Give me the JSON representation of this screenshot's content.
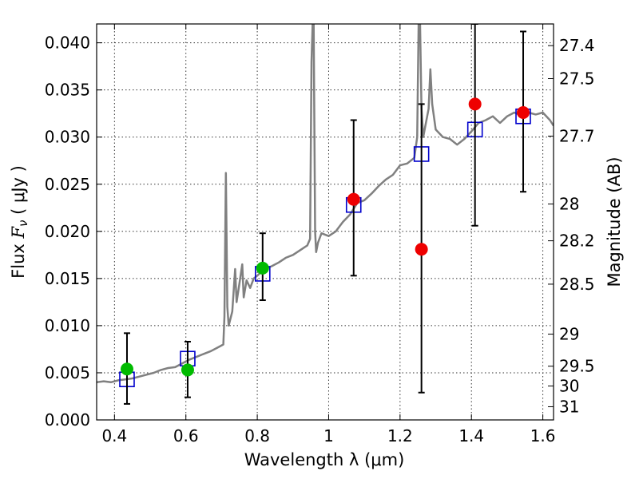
{
  "chart_data": {
    "type": "scatter",
    "title": "",
    "xlabel": "Wavelength  λ (μm)",
    "ylabel_prefix": "Flux  ",
    "ylabel_symbol": "F",
    "ylabel_subscript": "ν",
    "ylabel_unit": "  ( μJy )",
    "y2label": "Magnitude (AB)",
    "xlim": [
      0.35,
      1.63
    ],
    "ylim": [
      0.0,
      0.042
    ],
    "grid": true,
    "xticks": [
      0.4,
      0.6,
      0.8,
      1.0,
      1.2,
      1.4,
      1.6
    ],
    "xtick_labels": [
      "0.4",
      "0.6",
      "0.8",
      "1",
      "1.2",
      "1.4",
      "1.6"
    ],
    "yticks": [
      0.0,
      0.005,
      0.01,
      0.015,
      0.02,
      0.025,
      0.03,
      0.035,
      0.04
    ],
    "ytick_labels": [
      "0.000",
      "0.005",
      "0.010",
      "0.015",
      "0.020",
      "0.025",
      "0.030",
      "0.035",
      "0.040"
    ],
    "y2_ticks": [
      {
        "label": "27.4",
        "flux": 0.0397
      },
      {
        "label": "27.5",
        "flux": 0.0362
      },
      {
        "label": "27.7",
        "flux": 0.0301
      },
      {
        "label": "28",
        "flux": 0.0229
      },
      {
        "label": "28.2",
        "flux": 0.019
      },
      {
        "label": "28.5",
        "flux": 0.0144
      },
      {
        "label": "29",
        "flux": 0.0091
      },
      {
        "label": "29.5",
        "flux": 0.0057
      },
      {
        "label": "30",
        "flux": 0.0036
      },
      {
        "label": "31",
        "flux": 0.0014
      }
    ],
    "series": [
      {
        "kind": "spectrum",
        "color": "#808080",
        "points": [
          [
            0.35,
            0.004
          ],
          [
            0.37,
            0.0041
          ],
          [
            0.39,
            0.004
          ],
          [
            0.41,
            0.0042
          ],
          [
            0.43,
            0.0043
          ],
          [
            0.45,
            0.0044
          ],
          [
            0.47,
            0.0046
          ],
          [
            0.49,
            0.0048
          ],
          [
            0.51,
            0.005
          ],
          [
            0.53,
            0.0053
          ],
          [
            0.55,
            0.0055
          ],
          [
            0.57,
            0.0056
          ],
          [
            0.59,
            0.006
          ],
          [
            0.61,
            0.0064
          ],
          [
            0.63,
            0.0067
          ],
          [
            0.65,
            0.007
          ],
          [
            0.67,
            0.0073
          ],
          [
            0.69,
            0.0077
          ],
          [
            0.705,
            0.008
          ],
          [
            0.708,
            0.011
          ],
          [
            0.712,
            0.0262
          ],
          [
            0.716,
            0.012
          ],
          [
            0.72,
            0.01
          ],
          [
            0.73,
            0.0115
          ],
          [
            0.738,
            0.016
          ],
          [
            0.742,
            0.0125
          ],
          [
            0.75,
            0.0145
          ],
          [
            0.758,
            0.0165
          ],
          [
            0.762,
            0.013
          ],
          [
            0.77,
            0.0148
          ],
          [
            0.78,
            0.014
          ],
          [
            0.79,
            0.015
          ],
          [
            0.8,
            0.0153
          ],
          [
            0.82,
            0.016
          ],
          [
            0.84,
            0.0163
          ],
          [
            0.86,
            0.0167
          ],
          [
            0.88,
            0.0172
          ],
          [
            0.9,
            0.0175
          ],
          [
            0.92,
            0.018
          ],
          [
            0.94,
            0.0185
          ],
          [
            0.948,
            0.0192
          ],
          [
            0.952,
            0.038
          ],
          [
            0.955,
            0.042
          ],
          [
            0.958,
            0.042
          ],
          [
            0.962,
            0.02
          ],
          [
            0.965,
            0.0178
          ],
          [
            0.97,
            0.0188
          ],
          [
            0.98,
            0.0198
          ],
          [
            1.0,
            0.0195
          ],
          [
            1.02,
            0.02
          ],
          [
            1.04,
            0.021
          ],
          [
            1.06,
            0.0218
          ],
          [
            1.08,
            0.023
          ],
          [
            1.1,
            0.0233
          ],
          [
            1.12,
            0.024
          ],
          [
            1.14,
            0.0248
          ],
          [
            1.16,
            0.0255
          ],
          [
            1.18,
            0.026
          ],
          [
            1.2,
            0.027
          ],
          [
            1.22,
            0.0272
          ],
          [
            1.24,
            0.0278
          ],
          [
            1.248,
            0.03
          ],
          [
            1.252,
            0.042
          ],
          [
            1.256,
            0.042
          ],
          [
            1.26,
            0.033
          ],
          [
            1.265,
            0.03
          ],
          [
            1.27,
            0.031
          ],
          [
            1.28,
            0.033
          ],
          [
            1.285,
            0.0372
          ],
          [
            1.29,
            0.0335
          ],
          [
            1.3,
            0.0308
          ],
          [
            1.32,
            0.03
          ],
          [
            1.34,
            0.0298
          ],
          [
            1.36,
            0.0292
          ],
          [
            1.38,
            0.0298
          ],
          [
            1.4,
            0.0306
          ],
          [
            1.42,
            0.0315
          ],
          [
            1.44,
            0.0318
          ],
          [
            1.46,
            0.0322
          ],
          [
            1.48,
            0.0315
          ],
          [
            1.5,
            0.0322
          ],
          [
            1.52,
            0.0326
          ],
          [
            1.54,
            0.0323
          ],
          [
            1.56,
            0.0326
          ],
          [
            1.58,
            0.0324
          ],
          [
            1.6,
            0.0326
          ],
          [
            1.62,
            0.0318
          ],
          [
            1.63,
            0.0312
          ]
        ]
      },
      {
        "kind": "model-squares",
        "color": "#0000cc",
        "points": [
          [
            0.435,
            0.0043
          ],
          [
            0.605,
            0.0065
          ],
          [
            0.815,
            0.0155
          ],
          [
            1.07,
            0.0228
          ],
          [
            1.26,
            0.0282
          ],
          [
            1.41,
            0.0308
          ],
          [
            1.545,
            0.0322
          ]
        ]
      },
      {
        "kind": "errorbars",
        "color": "#000000",
        "bars": [
          {
            "x": 0.435,
            "lo": 0.0017,
            "hi": 0.0092
          },
          {
            "x": 0.605,
            "lo": 0.0024,
            "hi": 0.0083
          },
          {
            "x": 0.815,
            "lo": 0.0127,
            "hi": 0.0198
          },
          {
            "x": 1.07,
            "lo": 0.0153,
            "hi": 0.0318
          },
          {
            "x": 1.26,
            "lo": 0.0029,
            "hi": 0.0335
          },
          {
            "x": 1.41,
            "lo": 0.0206,
            "hi": 0.042
          },
          {
            "x": 1.545,
            "lo": 0.0242,
            "hi": 0.0412
          }
        ]
      },
      {
        "kind": "observed-green",
        "color": "#00bb00",
        "points": [
          [
            0.435,
            0.0054
          ],
          [
            0.605,
            0.0053
          ],
          [
            0.815,
            0.0161
          ]
        ]
      },
      {
        "kind": "observed-red",
        "color": "#ee0000",
        "points": [
          [
            1.07,
            0.0234
          ],
          [
            1.26,
            0.0181
          ],
          [
            1.41,
            0.0335
          ],
          [
            1.545,
            0.0326
          ]
        ]
      }
    ]
  }
}
